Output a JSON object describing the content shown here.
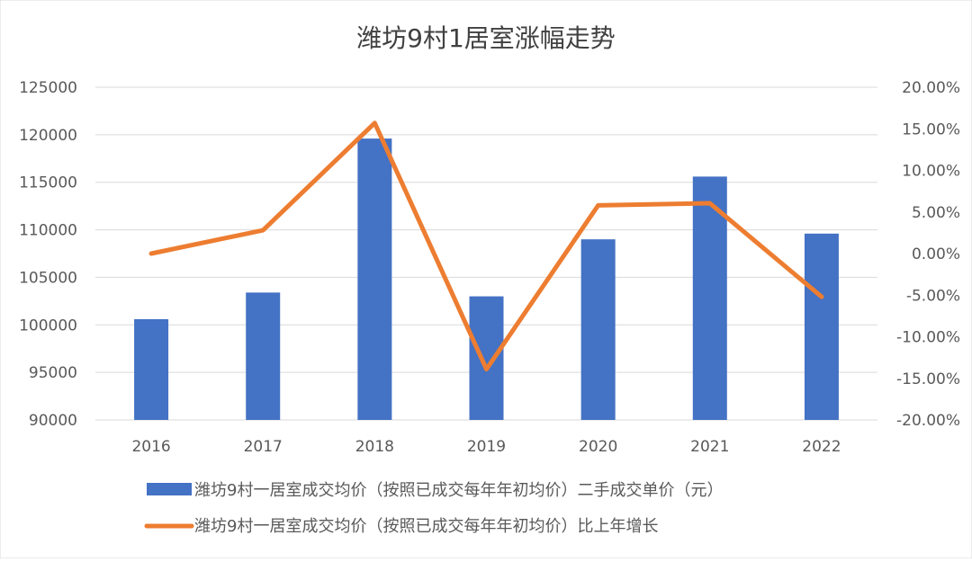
{
  "chart_data": {
    "type": "bar+line",
    "title": "潍坊9村1居室涨幅走势",
    "categories": [
      "2016",
      "2017",
      "2018",
      "2019",
      "2020",
      "2021",
      "2022"
    ],
    "series": [
      {
        "name": "潍坊9村一居室成交均价（按照已成交每年年初均价）二手成交单价（元）",
        "type": "bar",
        "axis": "left",
        "color": "#4472C4",
        "values": [
          100600,
          103400,
          119600,
          103000,
          109000,
          115600,
          109600
        ]
      },
      {
        "name": "潍坊9村一居室成交均价（按照已成交每年年初均价）比上年增长",
        "type": "line",
        "axis": "right",
        "color": "#ED7D31",
        "values": [
          0.0,
          2.8,
          15.7,
          -13.9,
          5.8,
          6.05,
          -5.2
        ]
      }
    ],
    "left_axis": {
      "ylim": [
        90000,
        125000
      ],
      "ticks": [
        "90000",
        "95000",
        "100000",
        "105000",
        "110000",
        "115000",
        "120000",
        "125000"
      ]
    },
    "right_axis": {
      "ylim": [
        -20,
        20
      ],
      "ticks": [
        "-20.00%",
        "-15.00%",
        "-10.00%",
        "-5.00%",
        "0.00%",
        "5.00%",
        "10.00%",
        "15.00%",
        "20.00%"
      ]
    },
    "grid": true,
    "legend_position": "bottom"
  }
}
